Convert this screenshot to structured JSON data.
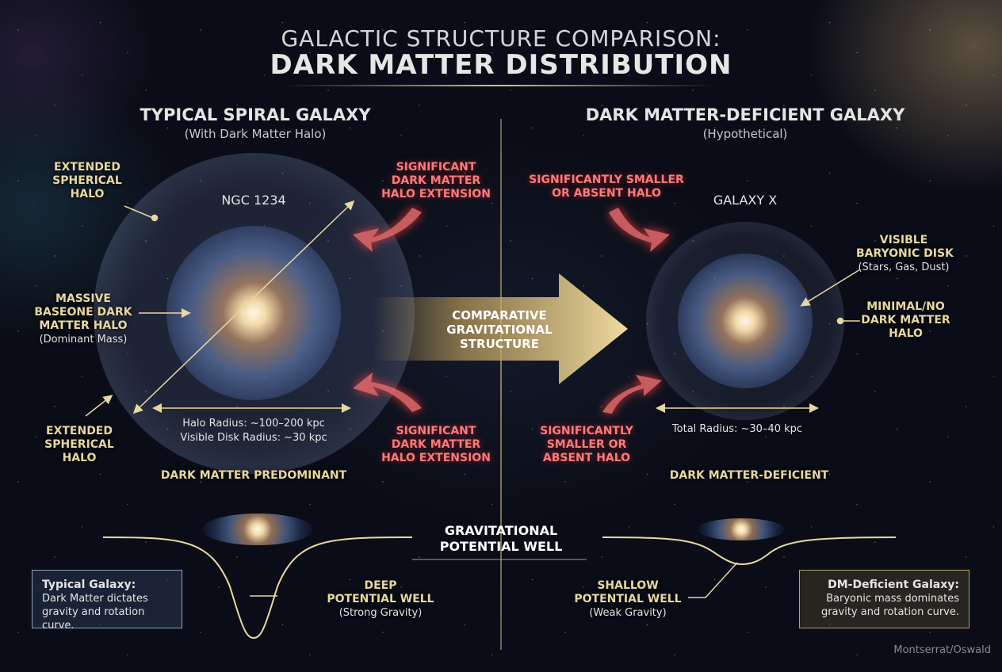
{
  "title": {
    "line1": "GALACTIC STRUCTURE COMPARISON:",
    "line2": "DARK MATTER DISTRIBUTION"
  },
  "left": {
    "heading": "TYPICAL SPIRAL GALAXY",
    "subheading": "(With Dark Matter Halo)",
    "galaxy_name": "NGC 1234",
    "label_halo_top": [
      "EXTENDED",
      "SPHERICAL",
      "HALO"
    ],
    "label_massive": [
      "MASSIVE",
      "BASEONE DARK",
      "MATTER HALO"
    ],
    "label_massive_sub": "(Dominant Mass)",
    "label_halo_bottom": [
      "EXTENDED",
      "SPHERICAL",
      "HALO"
    ],
    "label_ext_top": [
      "SIGNIFICANT",
      "DARK MATTER",
      "HALO EXTENSION"
    ],
    "label_ext_bottom": [
      "SIGNIFICANT",
      "DARK MATTER",
      "HALO EXTENSION"
    ],
    "halo_radius": "Halo Radius: ~100–200 kpc",
    "disk_radius": "Visible Disk Radius: ~30 kpc",
    "footer": "DARK MATTER PREDOMINANT",
    "well_label": [
      "DEEP",
      "POTENTIAL WELL"
    ],
    "well_sub": "(Strong Gravity)",
    "box_title": "Typical Galaxy:",
    "box_text": [
      "Dark Matter dictates",
      "gravity and rotation curve."
    ]
  },
  "right": {
    "heading": "DARK MATTER-DEFICIENT GALAXY",
    "subheading": "(Hypothetical)",
    "galaxy_name": "GALAXY X",
    "label_small_top": [
      "SIGNIFICANTLY SMALLER",
      "OR ABSENT HALO"
    ],
    "label_small_bottom": [
      "SIGNIFICANTLY",
      "SMALLER OR",
      "ABSENT HALO"
    ],
    "label_disk": [
      "VISIBLE",
      "BARYONIC DISK"
    ],
    "label_disk_sub": "(Stars, Gas, Dust)",
    "label_minimal": [
      "MINIMAL/NO",
      "DARK MATTER",
      "HALO"
    ],
    "total_radius": "Total Radius: ~30–40 kpc",
    "footer": "DARK MATTER-DEFICIENT",
    "well_label": [
      "SHALLOW",
      "POTENTIAL WELL"
    ],
    "well_sub": "(Weak Gravity)",
    "box_title": "DM-Deficient Galaxy:",
    "box_text": [
      "Baryonic mass dominates",
      "gravity and rotation curve."
    ]
  },
  "center": {
    "arrow_label": [
      "COMPARATIVE",
      "GRAVITATIONAL",
      "STRUCTURE"
    ],
    "well_title": [
      "GRAVITATIONAL",
      "POTENTIAL WELL"
    ]
  },
  "credit": "Montserrat/Oswald",
  "colors": {
    "gold": "#e8d7a0",
    "red": "#ff7a7a",
    "text": "#e4e4e4"
  }
}
